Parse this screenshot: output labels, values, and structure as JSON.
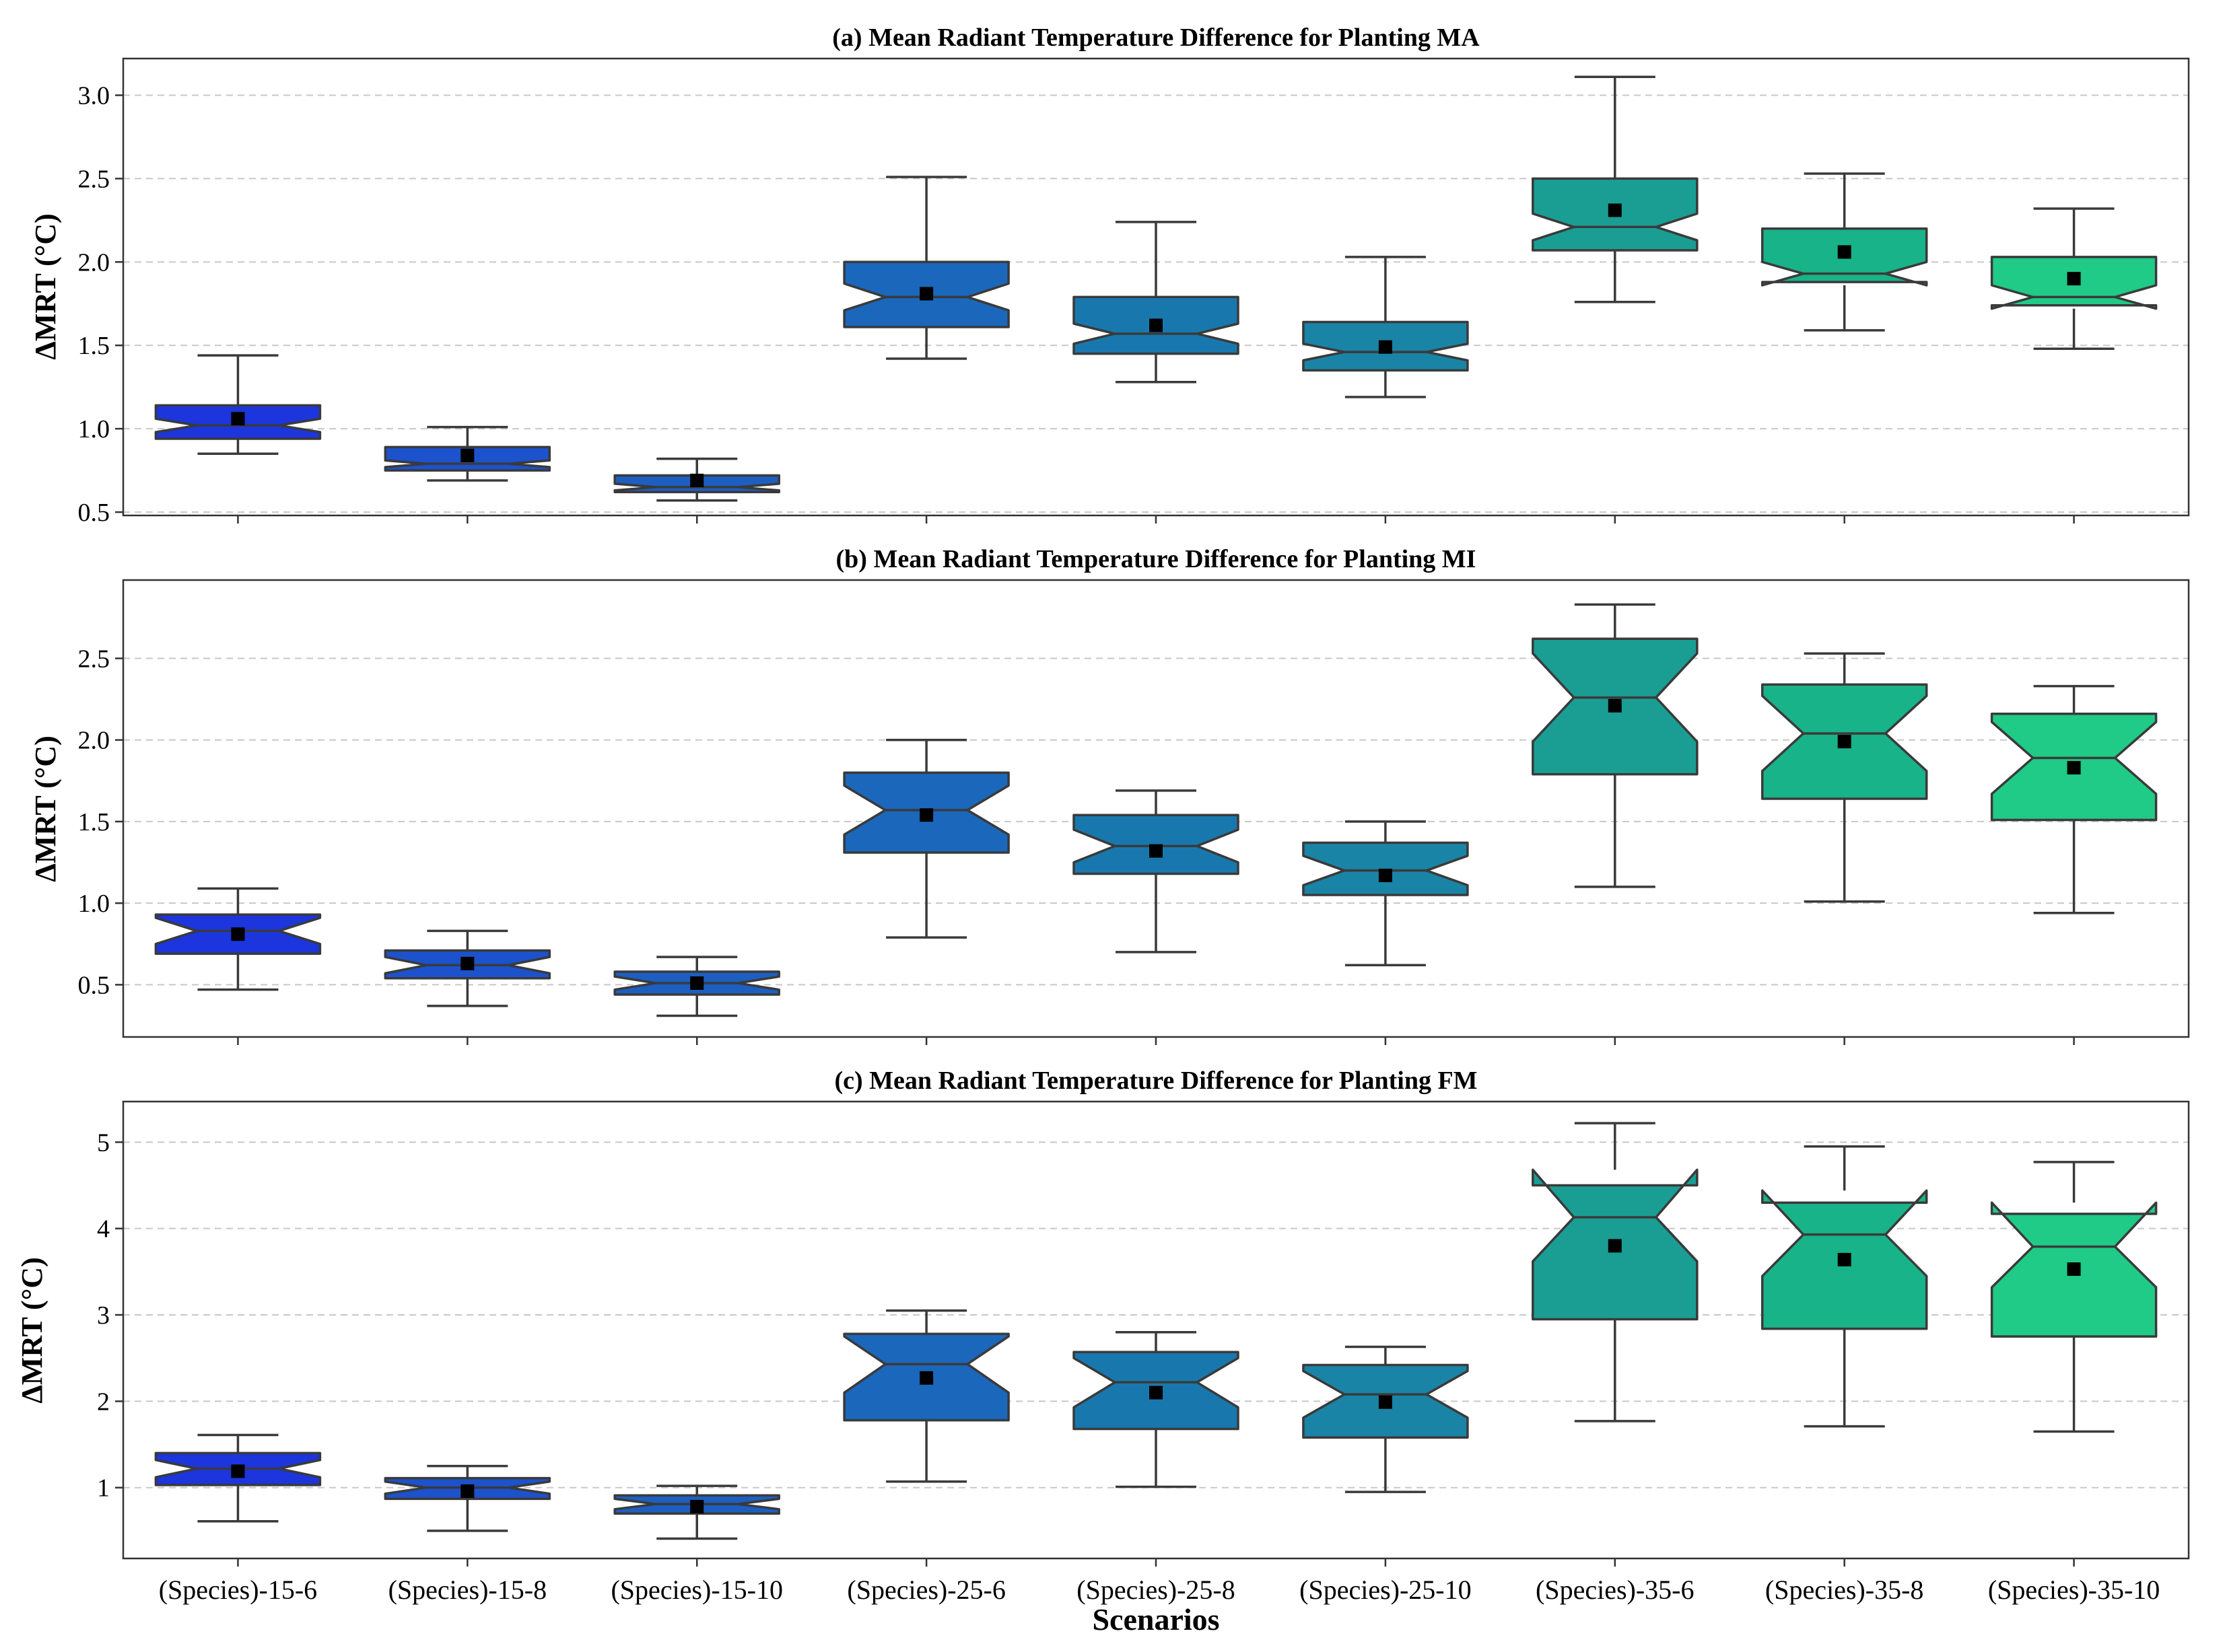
{
  "chart_data": [
    {
      "type": "box",
      "title": "(a) Mean Radiant Temperature Difference for Planting MA",
      "ylabel": "ΔMRT (°C)",
      "ylim": [
        0.48,
        3.22
      ],
      "yticks": [
        0.5,
        1.0,
        1.5,
        2.0,
        2.5,
        3.0
      ],
      "ytick_labels": [
        "0.5",
        "1.0",
        "1.5",
        "2.0",
        "2.5",
        "3.0"
      ],
      "grid": true,
      "categories": [
        "(Species)-15-6",
        "(Species)-15-8",
        "(Species)-15-10",
        "(Species)-25-6",
        "(Species)-25-8",
        "(Species)-25-10",
        "(Species)-35-6",
        "(Species)-35-8",
        "(Species)-35-10"
      ],
      "boxes": [
        {
          "min": 0.85,
          "q1": 0.94,
          "median": 1.02,
          "q3": 1.14,
          "max": 1.44,
          "mean": 1.06,
          "notch_low": 0.98,
          "notch_high": 1.06
        },
        {
          "min": 0.69,
          "q1": 0.75,
          "median": 0.79,
          "q3": 0.89,
          "max": 1.01,
          "mean": 0.84,
          "notch_low": 0.77,
          "notch_high": 0.81
        },
        {
          "min": 0.57,
          "q1": 0.62,
          "median": 0.65,
          "q3": 0.72,
          "max": 0.82,
          "mean": 0.69,
          "notch_low": 0.63,
          "notch_high": 0.67
        },
        {
          "min": 1.42,
          "q1": 1.61,
          "median": 1.79,
          "q3": 2.0,
          "max": 2.51,
          "mean": 1.81,
          "notch_low": 1.71,
          "notch_high": 1.87
        },
        {
          "min": 1.28,
          "q1": 1.45,
          "median": 1.57,
          "q3": 1.79,
          "max": 2.24,
          "mean": 1.62,
          "notch_low": 1.51,
          "notch_high": 1.63
        },
        {
          "min": 1.19,
          "q1": 1.35,
          "median": 1.46,
          "q3": 1.64,
          "max": 2.03,
          "mean": 1.49,
          "notch_low": 1.41,
          "notch_high": 1.51
        },
        {
          "min": 1.76,
          "q1": 2.07,
          "median": 2.21,
          "q3": 2.5,
          "max": 3.11,
          "mean": 2.31,
          "notch_low": 2.13,
          "notch_high": 2.29
        },
        {
          "min": 1.59,
          "q1": 1.88,
          "median": 1.93,
          "q3": 2.2,
          "max": 2.53,
          "mean": 2.06,
          "notch_low": 1.86,
          "notch_high": 2.0
        },
        {
          "min": 1.48,
          "q1": 1.74,
          "median": 1.79,
          "q3": 2.03,
          "max": 2.32,
          "mean": 1.9,
          "notch_low": 1.72,
          "notch_high": 1.86
        }
      ]
    },
    {
      "type": "box",
      "title": "(b) Mean Radiant Temperature Difference for Planting MI",
      "ylabel": "ΔMRT (°C)",
      "ylim": [
        0.18,
        2.98
      ],
      "yticks": [
        0.5,
        1.0,
        1.5,
        2.0,
        2.5
      ],
      "ytick_labels": [
        "0.5",
        "1.0",
        "1.5",
        "2.0",
        "2.5"
      ],
      "grid": true,
      "categories": [
        "(Species)-15-6",
        "(Species)-15-8",
        "(Species)-15-10",
        "(Species)-25-6",
        "(Species)-25-8",
        "(Species)-25-10",
        "(Species)-35-6",
        "(Species)-35-8",
        "(Species)-35-10"
      ],
      "boxes": [
        {
          "min": 0.47,
          "q1": 0.69,
          "median": 0.83,
          "q3": 0.93,
          "max": 1.09,
          "mean": 0.81,
          "notch_low": 0.75,
          "notch_high": 0.91
        },
        {
          "min": 0.37,
          "q1": 0.54,
          "median": 0.62,
          "q3": 0.71,
          "max": 0.83,
          "mean": 0.63,
          "notch_low": 0.57,
          "notch_high": 0.67
        },
        {
          "min": 0.31,
          "q1": 0.44,
          "median": 0.51,
          "q3": 0.58,
          "max": 0.67,
          "mean": 0.51,
          "notch_low": 0.47,
          "notch_high": 0.55
        },
        {
          "min": 0.79,
          "q1": 1.31,
          "median": 1.57,
          "q3": 1.8,
          "max": 2.0,
          "mean": 1.54,
          "notch_low": 1.42,
          "notch_high": 1.72
        },
        {
          "min": 0.7,
          "q1": 1.18,
          "median": 1.35,
          "q3": 1.54,
          "max": 1.69,
          "mean": 1.32,
          "notch_low": 1.25,
          "notch_high": 1.45
        },
        {
          "min": 0.62,
          "q1": 1.05,
          "median": 1.2,
          "q3": 1.37,
          "max": 1.5,
          "mean": 1.17,
          "notch_low": 1.11,
          "notch_high": 1.29
        },
        {
          "min": 1.1,
          "q1": 1.79,
          "median": 2.26,
          "q3": 2.62,
          "max": 2.83,
          "mean": 2.21,
          "notch_low": 1.99,
          "notch_high": 2.53
        },
        {
          "min": 1.01,
          "q1": 1.64,
          "median": 2.04,
          "q3": 2.34,
          "max": 2.53,
          "mean": 1.99,
          "notch_low": 1.81,
          "notch_high": 2.27
        },
        {
          "min": 0.94,
          "q1": 1.51,
          "median": 1.89,
          "q3": 2.16,
          "max": 2.33,
          "mean": 1.83,
          "notch_low": 1.67,
          "notch_high": 2.11
        }
      ]
    },
    {
      "type": "box",
      "title": "(c) Mean Radiant Temperature Difference for Planting FM",
      "ylabel": "ΔMRT (°C)",
      "xlabel": "Scenarios",
      "ylim": [
        0.18,
        5.47
      ],
      "yticks": [
        1,
        2,
        3,
        4,
        5
      ],
      "ytick_labels": [
        "1",
        "2",
        "3",
        "4",
        "5"
      ],
      "grid": true,
      "categories": [
        "(Species)-15-6",
        "(Species)-15-8",
        "(Species)-15-10",
        "(Species)-25-6",
        "(Species)-25-8",
        "(Species)-25-10",
        "(Species)-35-6",
        "(Species)-35-8",
        "(Species)-35-10"
      ],
      "boxes": [
        {
          "min": 0.61,
          "q1": 1.03,
          "median": 1.22,
          "q3": 1.4,
          "max": 1.61,
          "mean": 1.19,
          "notch_low": 1.12,
          "notch_high": 1.32
        },
        {
          "min": 0.5,
          "q1": 0.87,
          "median": 1.0,
          "q3": 1.11,
          "max": 1.25,
          "mean": 0.96,
          "notch_low": 0.93,
          "notch_high": 1.07
        },
        {
          "min": 0.41,
          "q1": 0.7,
          "median": 0.81,
          "q3": 0.91,
          "max": 1.02,
          "mean": 0.78,
          "notch_low": 0.75,
          "notch_high": 0.87
        },
        {
          "min": 1.07,
          "q1": 1.78,
          "median": 2.43,
          "q3": 2.78,
          "max": 3.05,
          "mean": 2.27,
          "notch_low": 2.1,
          "notch_high": 2.75
        },
        {
          "min": 1.01,
          "q1": 1.68,
          "median": 2.22,
          "q3": 2.57,
          "max": 2.8,
          "mean": 2.1,
          "notch_low": 1.93,
          "notch_high": 2.5
        },
        {
          "min": 0.95,
          "q1": 1.58,
          "median": 2.08,
          "q3": 2.42,
          "max": 2.63,
          "mean": 1.99,
          "notch_low": 1.81,
          "notch_high": 2.35
        },
        {
          "min": 1.77,
          "q1": 2.95,
          "median": 4.13,
          "q3": 4.5,
          "max": 5.22,
          "mean": 3.8,
          "notch_low": 3.62,
          "notch_high": 4.68
        },
        {
          "min": 1.71,
          "q1": 2.84,
          "median": 3.93,
          "q3": 4.3,
          "max": 4.95,
          "mean": 3.64,
          "notch_low": 3.45,
          "notch_high": 4.44
        },
        {
          "min": 1.65,
          "q1": 2.75,
          "median": 3.79,
          "q3": 4.17,
          "max": 4.77,
          "mean": 3.53,
          "notch_low": 3.32,
          "notch_high": 4.3
        }
      ]
    }
  ],
  "colors": [
    "#1c35dc",
    "#1c52cc",
    "#1d5fc1",
    "#1b67bb",
    "#1878ae",
    "#1a84a6",
    "#1a9e94",
    "#18b388",
    "#1fcb86"
  ]
}
